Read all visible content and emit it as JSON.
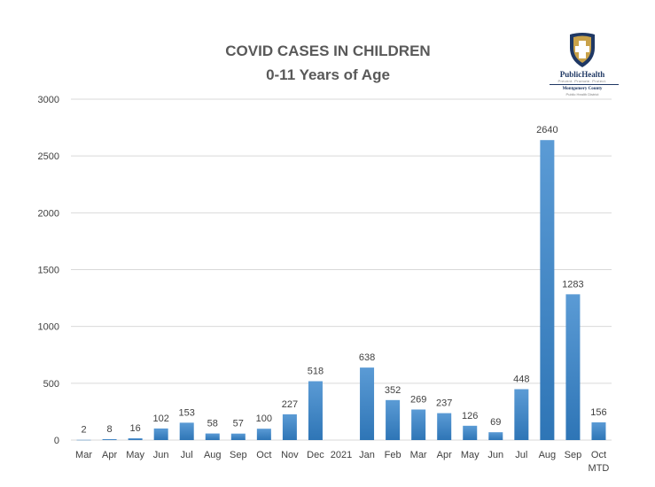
{
  "header": {
    "title_line1": "COVID CASES IN CHILDREN",
    "title_line2": "0-11 Years of Age"
  },
  "logo": {
    "icon": "shield-cross-icon",
    "name": "PublicHealth",
    "tagline": "Prevent. Promote. Protect.",
    "county": "Montgomery County",
    "district": "Public Health District"
  },
  "colors": {
    "bar_top": "#5b9bd5",
    "bar_bottom": "#2e75b6",
    "grid": "#d9d9d9",
    "title": "#595959",
    "logo_navy": "#1f3864",
    "logo_gold": "#c9a24a"
  },
  "chart_data": {
    "type": "bar",
    "title": "COVID CASES IN CHILDREN 0-11 Years of Age",
    "xlabel": "",
    "ylabel": "",
    "ylim": [
      0,
      3000
    ],
    "yticks": [
      0,
      500,
      1000,
      1500,
      2000,
      2500,
      3000
    ],
    "grid": true,
    "legend": "none",
    "categories": [
      "Mar",
      "Apr",
      "May",
      "Jun",
      "Jul",
      "Aug",
      "Sep",
      "Oct",
      "Nov",
      "Dec",
      "2021",
      "Jan",
      "Feb",
      "Mar",
      "Apr",
      "May",
      "Jun",
      "Jul",
      "Aug",
      "Sep",
      "Oct"
    ],
    "category_sublabels": [
      "",
      "",
      "",
      "",
      "",
      "",
      "",
      "",
      "",
      "",
      "",
      "",
      "",
      "",
      "",
      "",
      "",
      "",
      "",
      "",
      "MTD"
    ],
    "values": [
      2,
      8,
      16,
      102,
      153,
      58,
      57,
      100,
      227,
      518,
      null,
      638,
      352,
      269,
      237,
      126,
      69,
      448,
      2640,
      1283,
      156
    ]
  }
}
